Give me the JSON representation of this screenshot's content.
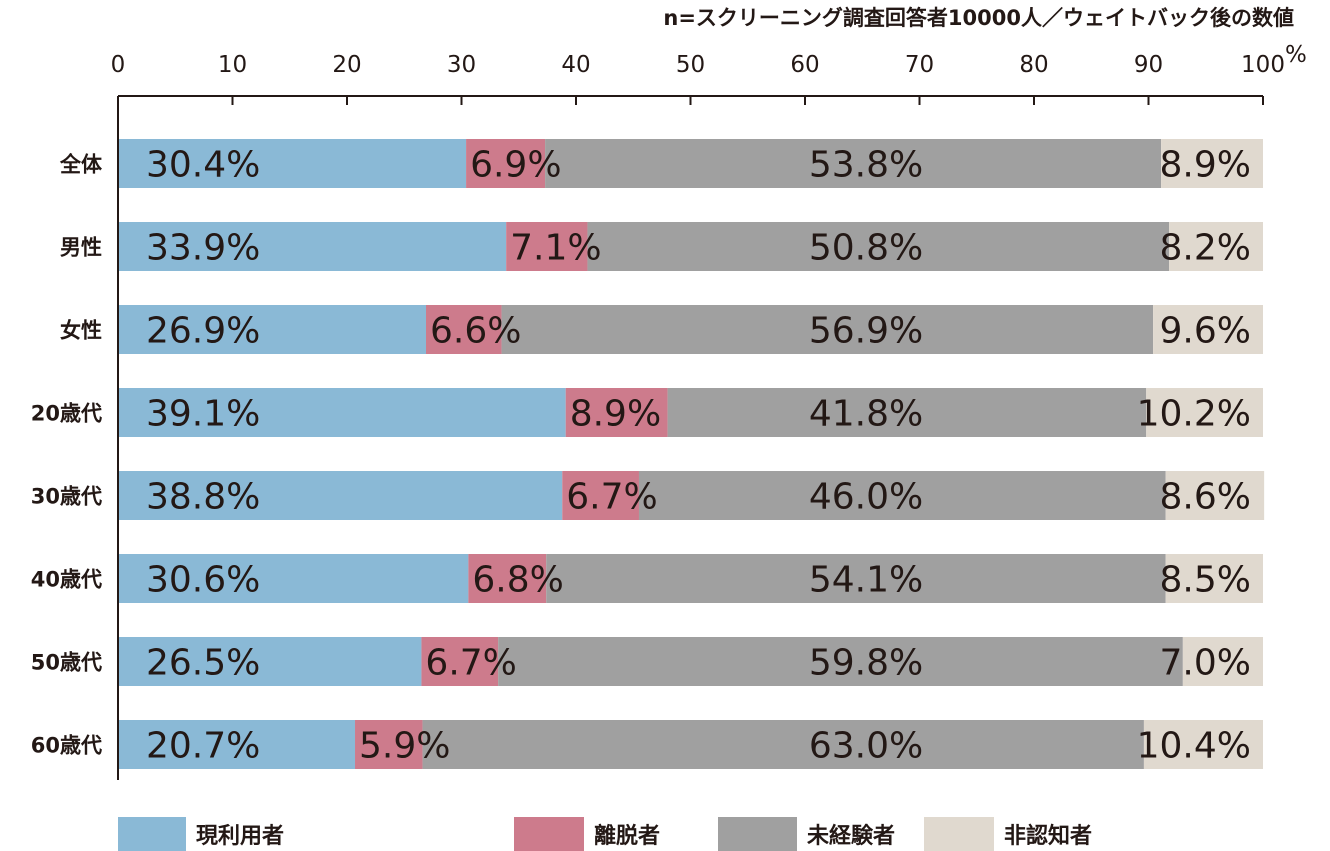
{
  "note": "n=スクリーニング調査回答者10000人／ウェイトバック後の数値",
  "chart_data": {
    "type": "bar",
    "orientation": "horizontal",
    "stacked": true,
    "xlim": [
      0,
      100
    ],
    "xticks": [
      "0",
      "10",
      "20",
      "30",
      "40",
      "50",
      "60",
      "70",
      "80",
      "90",
      "100"
    ],
    "unit": "%",
    "categories": [
      "全体",
      "男性",
      "女性",
      "20歳代",
      "30歳代",
      "40歳代",
      "50歳代",
      "60歳代"
    ],
    "series": [
      {
        "name": "現利用者",
        "color": "#8ab9d6",
        "values": [
          30.4,
          33.9,
          26.9,
          39.1,
          38.8,
          30.6,
          26.5,
          20.7
        ],
        "labels": [
          "30.4%",
          "33.9%",
          "26.9%",
          "39.1%",
          "38.8%",
          "30.6%",
          "26.5%",
          "20.7%"
        ]
      },
      {
        "name": "離脱者",
        "color": "#cd7b8c",
        "values": [
          6.9,
          7.1,
          6.6,
          8.9,
          6.7,
          6.8,
          6.7,
          5.9
        ],
        "labels": [
          "6.9%",
          "7.1%",
          "6.6%",
          "8.9%",
          "6.7%",
          "6.8%",
          "6.7%",
          "5.9%"
        ]
      },
      {
        "name": "未経験者",
        "color": "#a0a0a0",
        "values": [
          53.8,
          50.8,
          56.9,
          41.8,
          46.0,
          54.1,
          59.8,
          63.0
        ],
        "labels": [
          "53.8%",
          "50.8%",
          "56.9%",
          "41.8%",
          "46.0%",
          "54.1%",
          "59.8%",
          "63.0%"
        ]
      },
      {
        "name": "非認知者",
        "color": "#e0d9cf",
        "values": [
          8.9,
          8.2,
          9.6,
          10.2,
          8.6,
          8.5,
          7.0,
          10.4
        ],
        "labels": [
          "8.9%",
          "8.2%",
          "9.6%",
          "10.2%",
          "8.6%",
          "8.5%",
          "7.0%",
          "10.4%"
        ]
      }
    ],
    "legend": "bottom"
  }
}
